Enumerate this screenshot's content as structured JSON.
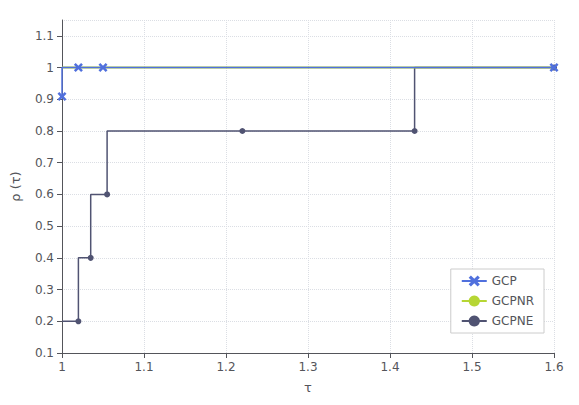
{
  "chart_data": {
    "type": "line",
    "xlabel": "τ",
    "ylabel": "ρ (τ)",
    "xlim": [
      1.0,
      1.6
    ],
    "ylim": [
      0.1,
      1.15
    ],
    "xticks": [
      1.0,
      1.1,
      1.2,
      1.3,
      1.4,
      1.5,
      1.6
    ],
    "yticks": [
      0.1,
      0.2,
      0.3,
      0.4,
      0.5,
      0.6,
      0.7,
      0.8,
      0.9,
      1.0,
      1.1
    ],
    "grid": true,
    "legend": "lower right",
    "series": [
      {
        "name": "GCP",
        "marker": "x",
        "x": [
          1.0,
          1.0,
          1.02,
          1.02,
          1.05,
          1.6
        ],
        "values": [
          0.909,
          1.0,
          1.0,
          1.0,
          1.0,
          1.0
        ],
        "marker_x": [
          1.0,
          1.02,
          1.05,
          1.6
        ],
        "marker_values": [
          0.909,
          1.0,
          1.0,
          1.0
        ]
      },
      {
        "name": "GCPNR",
        "x": [
          1.0,
          1.6
        ],
        "values": [
          1.0,
          1.0
        ]
      },
      {
        "name": "GCPNE",
        "marker": "dot",
        "x": [
          1.0,
          1.02,
          1.02,
          1.035,
          1.035,
          1.055,
          1.055,
          1.22,
          1.22,
          1.43,
          1.43,
          1.6
        ],
        "values": [
          0.2,
          0.2,
          0.4,
          0.4,
          0.6,
          0.6,
          0.8,
          0.8,
          0.8,
          0.8,
          1.0,
          1.0
        ],
        "marker_x": [
          1.02,
          1.035,
          1.055,
          1.22,
          1.43,
          1.6
        ],
        "marker_values": [
          0.2,
          0.4,
          0.6,
          0.8,
          0.8,
          1.0
        ]
      }
    ]
  }
}
